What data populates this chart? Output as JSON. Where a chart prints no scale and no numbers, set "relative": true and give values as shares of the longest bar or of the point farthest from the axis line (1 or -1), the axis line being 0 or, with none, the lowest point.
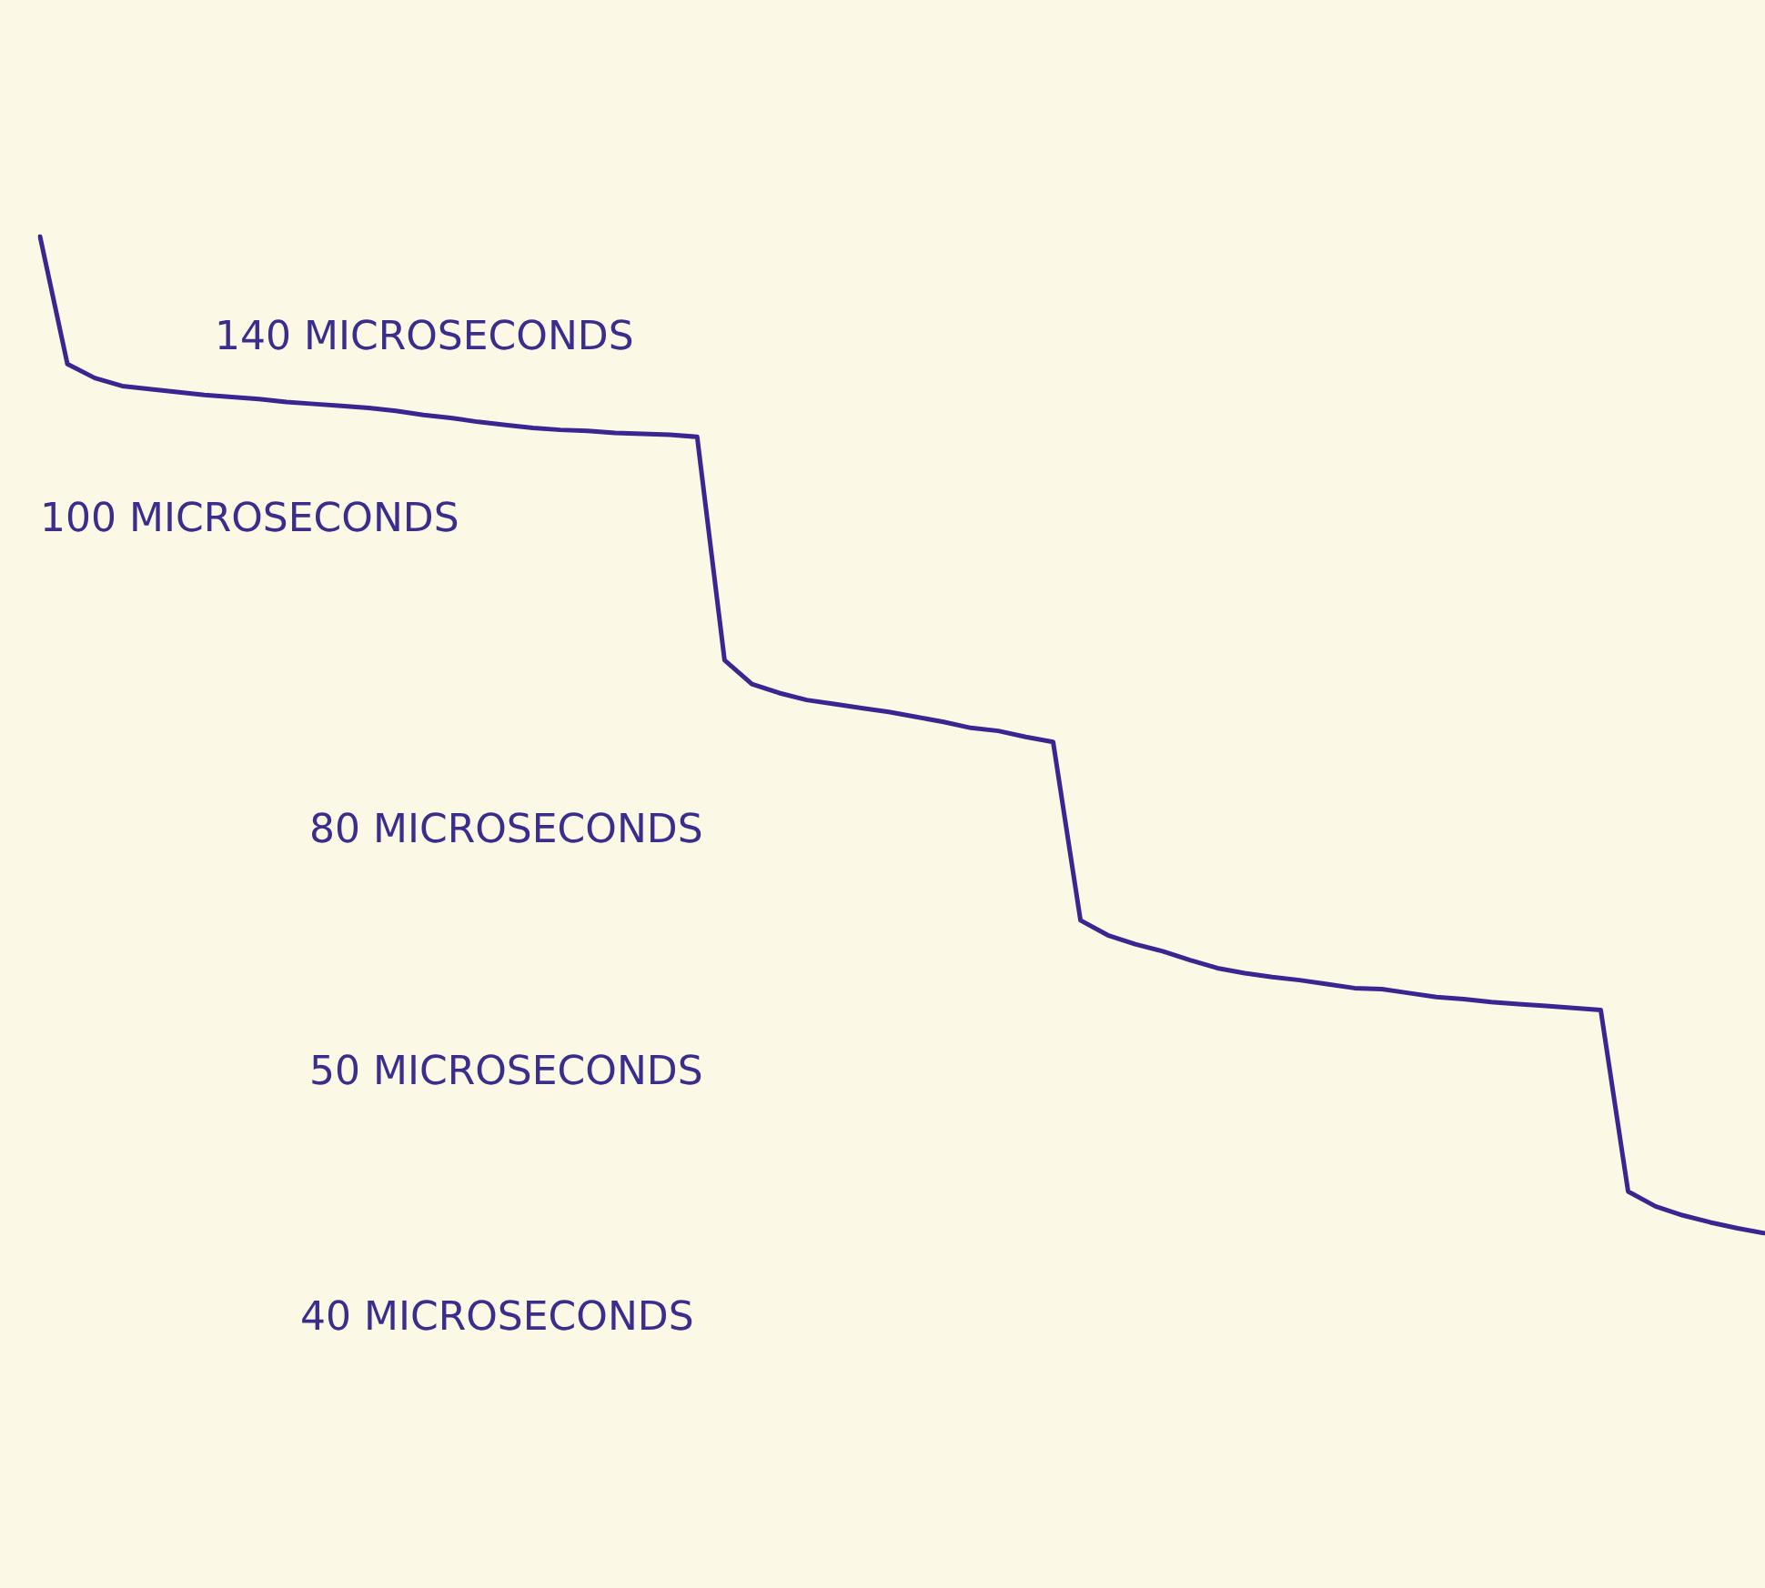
{
  "chart_data": {
    "type": "line",
    "relative": true,
    "color": "#3b2590",
    "marker": "none",
    "line_style": "solid",
    "legend": false,
    "categories": [
      null,
      null,
      null,
      null,
      null,
      null,
      null,
      null,
      null,
      null,
      null,
      null,
      null,
      null,
      null,
      null,
      null,
      null,
      null,
      null,
      null,
      null,
      null,
      null,
      null,
      null,
      null,
      null,
      null,
      null,
      null,
      null,
      null,
      null,
      null,
      null,
      null,
      null,
      null,
      null,
      null,
      null,
      null,
      null,
      null,
      null,
      null,
      null,
      null,
      null,
      null,
      null,
      null,
      null,
      null,
      null,
      null,
      null,
      null,
      null,
      null,
      null,
      null,
      null
    ],
    "values": [
      1.0,
      0.872,
      0.858,
      0.85,
      0.847,
      0.844,
      0.841,
      0.839,
      0.837,
      0.834,
      0.832,
      0.83,
      0.828,
      0.825,
      0.821,
      0.818,
      0.814,
      0.811,
      0.808,
      0.806,
      0.805,
      0.803,
      0.802,
      0.801,
      0.799,
      0.575,
      0.551,
      0.542,
      0.535,
      0.531,
      0.527,
      0.523,
      0.518,
      0.513,
      0.507,
      0.504,
      0.498,
      0.493,
      0.314,
      0.299,
      0.29,
      0.283,
      0.274,
      0.266,
      0.261,
      0.257,
      0.254,
      0.25,
      0.246,
      0.245,
      0.241,
      0.237,
      0.235,
      0.232,
      0.23,
      0.228,
      0.226,
      0.224,
      0.042,
      0.027,
      0.018,
      0.011,
      0.005,
      0
    ],
    "annotations": [
      "140 MICROSECONDS",
      "100 MICROSECONDS",
      "80 MICROSECONDS",
      "50 MICROSECONDS",
      "40 MICROSECONDS"
    ]
  }
}
